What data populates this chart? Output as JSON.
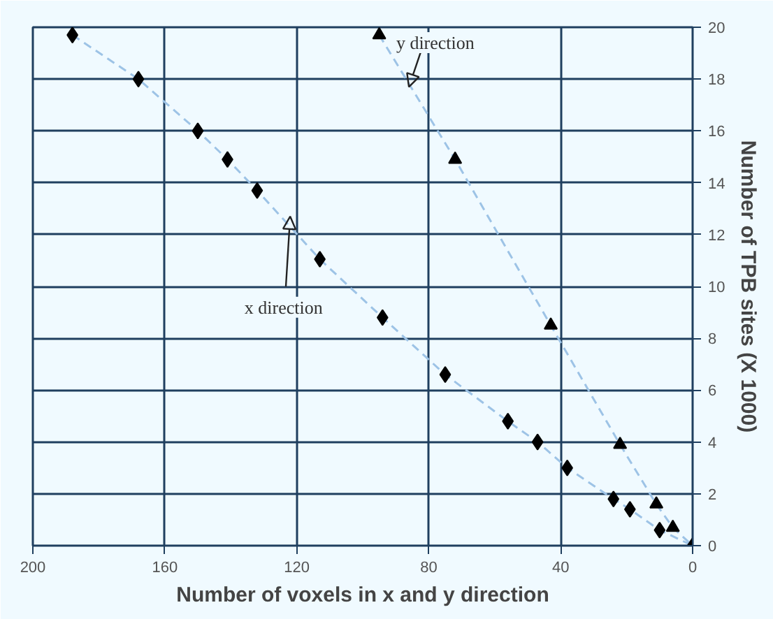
{
  "chart_data": {
    "type": "scatter",
    "xlabel": "Number of voxels in x and y direction",
    "ylabel": "Number of TPB sites (X 1000)",
    "xlim": [
      200,
      0
    ],
    "xticks": [
      200,
      160,
      120,
      80,
      40,
      0
    ],
    "ylim": [
      0,
      20
    ],
    "yticks": [
      0,
      2,
      4,
      6,
      8,
      10,
      12,
      14,
      16,
      18,
      20
    ],
    "grid": true,
    "series": [
      {
        "type": "line",
        "color": "#9dc3e6",
        "line_style": "dashed",
        "marker": "none",
        "x": [
          188,
          168,
          150,
          141,
          132,
          113,
          94,
          75,
          56,
          47,
          38,
          24,
          19,
          10,
          0
        ],
        "values": [
          19.7,
          18.0,
          16.0,
          14.9,
          13.7,
          11.05,
          8.8,
          6.6,
          4.8,
          4.0,
          3.0,
          1.8,
          1.4,
          0.6,
          0
        ]
      },
      {
        "type": "line",
        "color": "#9dc3e6",
        "line_style": "dashed",
        "marker": "none",
        "x": [
          95,
          72,
          43,
          22,
          11,
          6,
          0
        ],
        "values": [
          19.7,
          14.9,
          8.5,
          3.9,
          1.6,
          0.7,
          0
        ]
      },
      {
        "color": "#000000",
        "marker": "diamond",
        "x": [
          188,
          168,
          150,
          141,
          132,
          113,
          94,
          75,
          56,
          47,
          38,
          24,
          19,
          10,
          0
        ],
        "values": [
          19.7,
          18.0,
          16.0,
          14.9,
          13.7,
          11.05,
          8.8,
          6.6,
          4.8,
          4.0,
          3.0,
          1.8,
          1.4,
          0.6,
          0
        ]
      },
      {
        "color": "#000000",
        "marker": "triangle",
        "x": [
          95,
          72,
          43,
          22,
          11,
          6
        ],
        "values": [
          19.7,
          14.9,
          8.5,
          3.9,
          1.6,
          0.7
        ]
      }
    ],
    "annotations": [
      {
        "text": "x direction",
        "x": 122,
        "y": 12.7
      },
      {
        "text": "y direction",
        "x": 86,
        "y": 17.7
      }
    ]
  }
}
